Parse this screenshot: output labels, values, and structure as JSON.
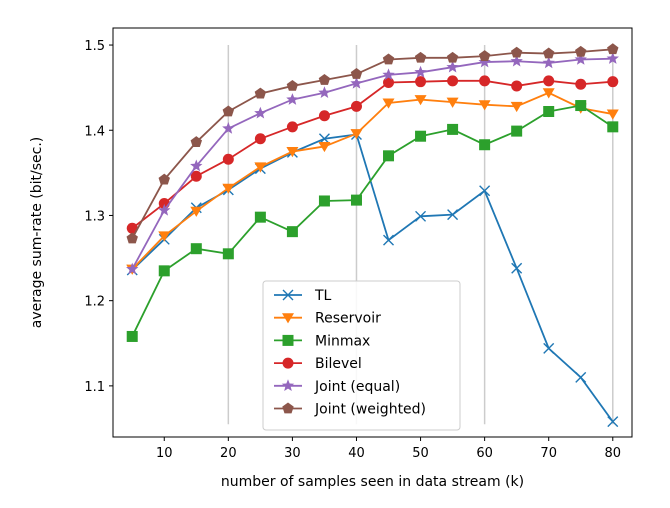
{
  "chart_data": {
    "type": "line",
    "title": "",
    "xlabel": "number of samples seen in data stream (k)",
    "ylabel": "average sum-rate (bit/sec.)",
    "xlim": [
      2,
      83
    ],
    "ylim": [
      1.04,
      1.52
    ],
    "xticks": [
      10,
      20,
      30,
      40,
      50,
      60,
      70,
      80
    ],
    "yticks": [
      1.1,
      1.2,
      1.3,
      1.4,
      1.5
    ],
    "grid": false,
    "vertical_reference_lines": [
      20,
      40,
      60,
      80
    ],
    "legend_position": "lower-center",
    "x": [
      5,
      10,
      15,
      20,
      25,
      30,
      35,
      40,
      45,
      50,
      55,
      60,
      65,
      70,
      75,
      80
    ],
    "series": [
      {
        "name": "TL",
        "color": "#1f77b4",
        "marker": "x",
        "values": [
          1.236,
          1.272,
          1.309,
          1.33,
          1.355,
          1.374,
          1.39,
          1.395,
          1.271,
          1.299,
          1.301,
          1.329,
          1.238,
          1.144,
          1.11,
          1.058
        ]
      },
      {
        "name": "Reservoir",
        "color": "#ff7f0e",
        "marker": "triangle-down",
        "values": [
          1.237,
          1.276,
          1.305,
          1.332,
          1.357,
          1.375,
          1.381,
          1.396,
          1.432,
          1.436,
          1.433,
          1.43,
          1.428,
          1.444,
          1.426,
          1.419
        ]
      },
      {
        "name": "Minmax",
        "color": "#2ca02c",
        "marker": "square",
        "values": [
          1.158,
          1.235,
          1.261,
          1.255,
          1.298,
          1.281,
          1.317,
          1.318,
          1.37,
          1.393,
          1.401,
          1.383,
          1.399,
          1.422,
          1.429,
          1.404
        ]
      },
      {
        "name": "Bilevel",
        "color": "#d62728",
        "marker": "circle",
        "values": [
          1.285,
          1.314,
          1.346,
          1.366,
          1.39,
          1.404,
          1.417,
          1.428,
          1.456,
          1.457,
          1.458,
          1.458,
          1.452,
          1.458,
          1.454,
          1.457
        ]
      },
      {
        "name": "Joint (equal)",
        "color": "#9467bd",
        "marker": "star",
        "values": [
          1.237,
          1.306,
          1.358,
          1.402,
          1.42,
          1.436,
          1.444,
          1.455,
          1.465,
          1.468,
          1.474,
          1.48,
          1.481,
          1.479,
          1.483,
          1.484
        ]
      },
      {
        "name": "Joint (weighted)",
        "color": "#8c564b",
        "marker": "pentagon",
        "values": [
          1.273,
          1.342,
          1.386,
          1.422,
          1.443,
          1.452,
          1.459,
          1.466,
          1.483,
          1.485,
          1.485,
          1.487,
          1.491,
          1.49,
          1.492,
          1.495
        ]
      }
    ]
  }
}
